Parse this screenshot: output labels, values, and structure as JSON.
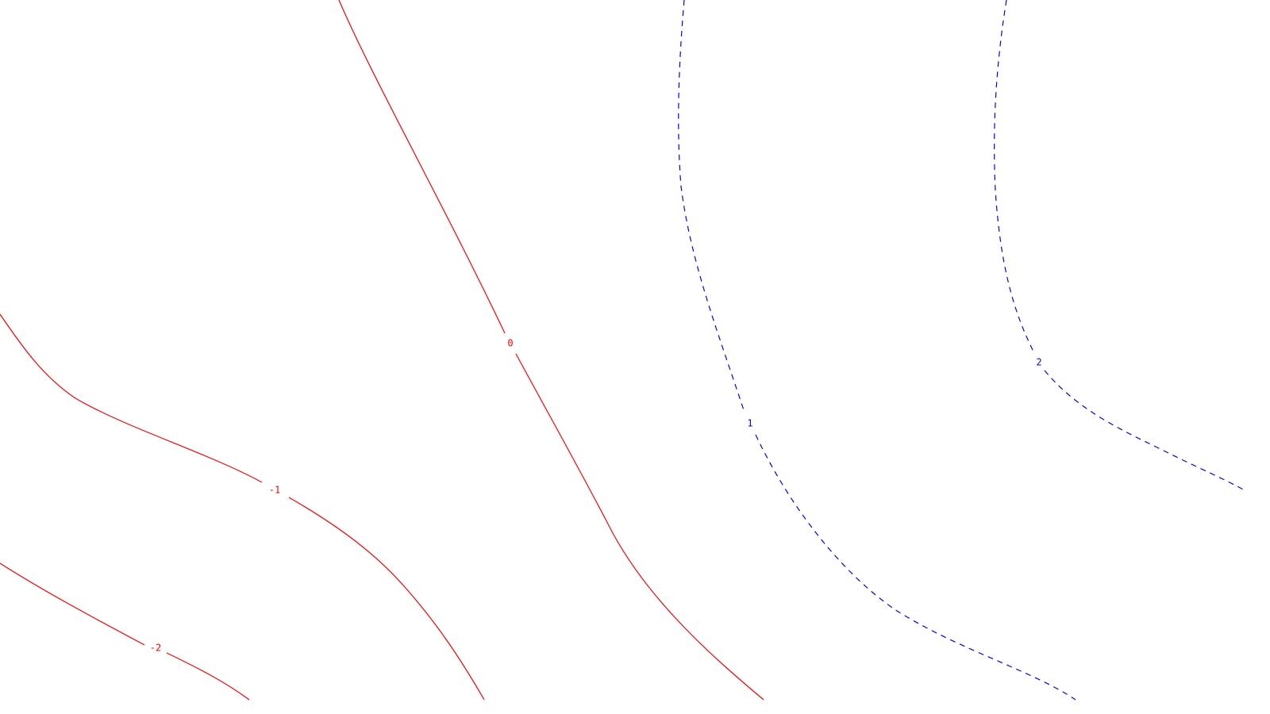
{
  "chart_data": {
    "type": "contour",
    "grid": false,
    "colors": {
      "negative": "#ff0000",
      "positive": "#0000ff",
      "background": "#ffffff"
    },
    "line_styles": {
      "negative": "solid",
      "positive": "dashed"
    },
    "levels": [
      {
        "value": -2,
        "label": "-2",
        "sign": "negative"
      },
      {
        "value": -1,
        "label": "-1",
        "sign": "negative"
      },
      {
        "value": 0,
        "label": "0",
        "sign": "negative"
      },
      {
        "value": 1,
        "label": "1",
        "sign": "positive"
      },
      {
        "value": 2,
        "label": "2",
        "sign": "positive"
      }
    ]
  }
}
